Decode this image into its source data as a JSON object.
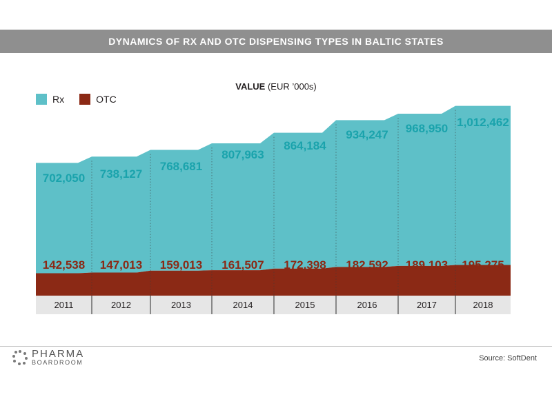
{
  "banner": {
    "title": "DYNAMICS OF RX AND OTC DISPENSING TYPES IN BALTIC STATES"
  },
  "subtitle": {
    "bold": "VALUE",
    "unit": "(EUR ’000s)"
  },
  "legend": [
    {
      "label": "Rx",
      "color": "#5ec0c8"
    },
    {
      "label": "OTC",
      "color": "#8b2915"
    }
  ],
  "chart_data": {
    "type": "area",
    "stacked": true,
    "categories": [
      "2011",
      "2012",
      "2013",
      "2014",
      "2015",
      "2016",
      "2017",
      "2018"
    ],
    "series": [
      {
        "name": "Rx",
        "color": "#5ec0c8",
        "label_color": "#1aa3ac",
        "values": [
          702050,
          738127,
          768681,
          807963,
          864184,
          934247,
          968950,
          1012462
        ],
        "labels": [
          "702,050",
          "738,127",
          "768,681",
          "807,963",
          "864,184",
          "934,247",
          "968,950",
          "1,012,462"
        ]
      },
      {
        "name": "OTC",
        "color": "#8b2915",
        "label_color": "#8b2915",
        "values": [
          142538,
          147013,
          159013,
          161507,
          172398,
          182592,
          189103,
          195275
        ],
        "labels": [
          "142,538",
          "147,013",
          "159,013",
          "161,507",
          "172,398",
          "182,592",
          "189,103",
          "195,275"
        ]
      }
    ],
    "ylabel": "VALUE (EUR ’000s)",
    "legend_position": "top-left",
    "grid": false,
    "axis_band_color": "#e6e6e6",
    "divider_color": "#4a4a4a"
  },
  "logo": {
    "line1": "PHARMA",
    "line2": "BOARDROOM"
  },
  "source": "Source: SoftDent"
}
